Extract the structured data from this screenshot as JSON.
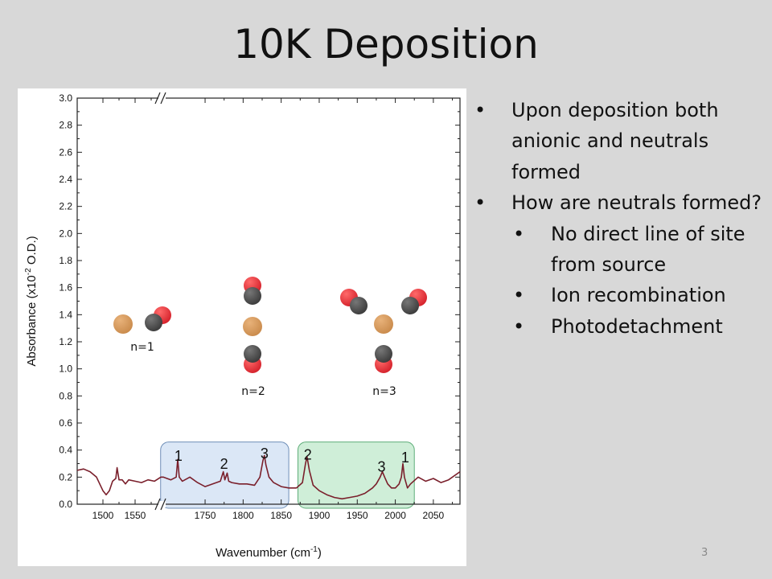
{
  "slide": {
    "title": "10K Deposition",
    "page_number": "3"
  },
  "bullets": [
    {
      "level": 1,
      "text": "Upon deposition both anionic and neutrals formed"
    },
    {
      "level": 1,
      "text": "How are neutrals formed?"
    },
    {
      "level": 2,
      "text": "No direct line of site from source"
    },
    {
      "level": 2,
      "text": "Ion recombination"
    },
    {
      "level": 2,
      "text": "Photodetachment"
    }
  ],
  "bullet_glyph": "•",
  "colors": {
    "spectrum": "#7a1f2b",
    "box_blue_fill": "#dbe7f6",
    "box_green_fill": "#cfeed8",
    "copper": "#c98a4b",
    "carbon": "#3a3a3a",
    "oxygen": "#d4202a"
  },
  "molecule_labels": [
    "n=1",
    "n=2",
    "n=3"
  ],
  "chart_data": {
    "type": "line",
    "xlabel": "Wavenumber (cm-1)",
    "ylabel": "Absorbance (x10-2 O.D.)",
    "axis_break": "x",
    "segments": [
      {
        "xlim": [
          1460,
          1590
        ],
        "ticks": [
          "1500",
          "1550"
        ]
      },
      {
        "xlim": [
          1695,
          2085
        ],
        "ticks": [
          "1750",
          "1800",
          "1850",
          "1900",
          "1950",
          "2000",
          "2050"
        ]
      }
    ],
    "ylim": [
      0,
      3.0
    ],
    "yticks": [
      "0.0",
      "0.2",
      "0.4",
      "0.6",
      "0.8",
      "1.0",
      "1.2",
      "1.4",
      "1.6",
      "1.8",
      "2.0",
      "2.2",
      "2.4",
      "2.6",
      "2.8",
      "3.0"
    ],
    "grid": false,
    "series": [
      {
        "x": [
          1460,
          1470,
          1480,
          1490,
          1500,
          1505,
          1510,
          1515,
          1520,
          1522,
          1525,
          1530,
          1535,
          1540,
          1550,
          1560,
          1570,
          1580,
          1590,
          1695,
          1705,
          1712,
          1714,
          1716,
          1720,
          1730,
          1740,
          1750,
          1760,
          1770,
          1774,
          1776,
          1779,
          1781,
          1785,
          1795,
          1805,
          1815,
          1822,
          1826,
          1828,
          1830,
          1834,
          1840,
          1850,
          1860,
          1870,
          1878,
          1882,
          1884,
          1887,
          1892,
          1900,
          1910,
          1920,
          1930,
          1940,
          1950,
          1960,
          1970,
          1975,
          1980,
          1983,
          1986,
          1990,
          1995,
          2000,
          2005,
          2008,
          2010,
          2012,
          2016,
          2020,
          2030,
          2040,
          2050,
          2060,
          2070,
          2085
        ],
        "y": [
          0.25,
          0.26,
          0.24,
          0.2,
          0.1,
          0.07,
          0.1,
          0.17,
          0.19,
          0.27,
          0.18,
          0.18,
          0.15,
          0.18,
          0.17,
          0.16,
          0.18,
          0.17,
          0.2,
          0.2,
          0.18,
          0.2,
          0.33,
          0.2,
          0.17,
          0.2,
          0.16,
          0.13,
          0.15,
          0.17,
          0.24,
          0.18,
          0.23,
          0.17,
          0.16,
          0.15,
          0.15,
          0.14,
          0.2,
          0.32,
          0.36,
          0.29,
          0.2,
          0.16,
          0.13,
          0.12,
          0.12,
          0.16,
          0.3,
          0.35,
          0.25,
          0.14,
          0.1,
          0.07,
          0.05,
          0.04,
          0.05,
          0.06,
          0.08,
          0.12,
          0.15,
          0.2,
          0.24,
          0.2,
          0.15,
          0.12,
          0.12,
          0.15,
          0.2,
          0.3,
          0.2,
          0.12,
          0.15,
          0.2,
          0.17,
          0.19,
          0.16,
          0.18,
          0.24
        ]
      }
    ],
    "annotations": {
      "blue_box": {
        "x": [
          1700,
          1860
        ],
        "labels": [
          "1",
          "2",
          "3"
        ]
      },
      "green_box": {
        "x": [
          1872,
          2025
        ],
        "labels": [
          "2",
          "3",
          "1"
        ]
      }
    }
  }
}
